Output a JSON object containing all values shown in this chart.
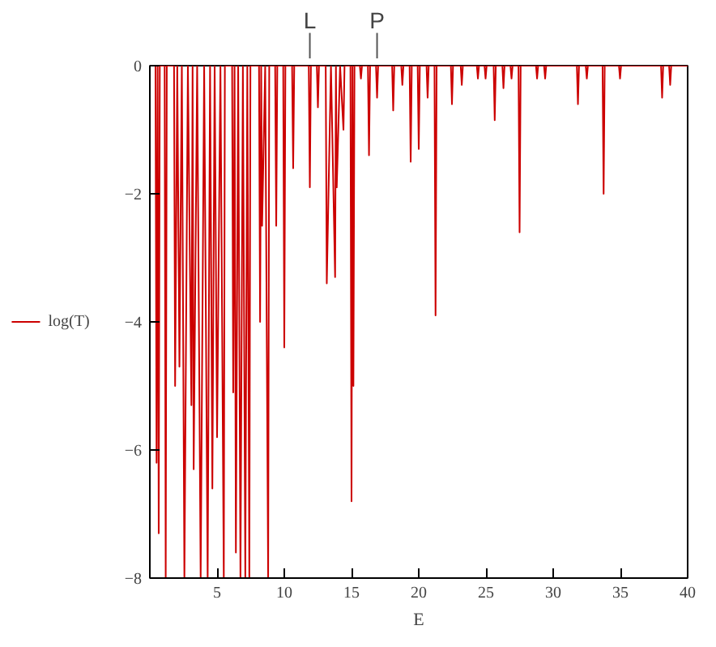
{
  "chart_data": {
    "type": "line",
    "xlabel": "E",
    "legend": "left",
    "grid": false,
    "marker": "none",
    "line_style": "solid",
    "xlim": [
      0,
      40
    ],
    "ylim": [
      -8,
      0
    ],
    "xticks": [
      5,
      10,
      15,
      20,
      25,
      30,
      35,
      40
    ],
    "yticks": [
      0,
      -2,
      -4,
      -6,
      -8
    ],
    "annotations": [
      {
        "text": "L",
        "x": 11.9,
        "y": 0
      },
      {
        "text": "P",
        "x": 16.9,
        "y": 0
      }
    ],
    "series": [
      {
        "name": "log(T)",
        "color": "#cc0000",
        "x": [
          0.1,
          0.42,
          0.5,
          0.58,
          0.66,
          0.74,
          1.1,
          1.18,
          1.26,
          1.8,
          1.88,
          2.04,
          2.2,
          2.38,
          2.57,
          2.83,
          3.09,
          3.18,
          3.26,
          3.52,
          3.78,
          4.04,
          4.3,
          4.48,
          4.65,
          4.82,
          5.0,
          5.25,
          5.5,
          5.58,
          6.12,
          6.2,
          6.3,
          6.4,
          6.57,
          6.74,
          6.92,
          7.1,
          7.25,
          7.4,
          7.48,
          8.12,
          8.2,
          8.28,
          8.35,
          8.58,
          8.8,
          8.88,
          9.32,
          9.4,
          9.48,
          9.92,
          10.0,
          10.08,
          10.58,
          10.66,
          10.74,
          11.82,
          11.9,
          11.98,
          12.42,
          12.5,
          12.58,
          13.08,
          13.16,
          13.47,
          13.78,
          13.84,
          13.9,
          14.15,
          14.4,
          14.48,
          14.92,
          15.0,
          15.07,
          15.14,
          15.22,
          15.62,
          15.7,
          15.78,
          16.22,
          16.3,
          16.38,
          16.82,
          16.9,
          16.98,
          18.02,
          18.1,
          18.18,
          18.7,
          18.78,
          18.86,
          19.32,
          19.4,
          19.48,
          19.92,
          20.0,
          20.08,
          20.58,
          20.66,
          20.74,
          21.17,
          21.25,
          21.33,
          22.39,
          22.47,
          22.55,
          23.12,
          23.2,
          23.28,
          24.32,
          24.4,
          24.48,
          24.89,
          24.97,
          25.05,
          25.57,
          25.65,
          25.73,
          26.22,
          26.3,
          26.38,
          26.82,
          26.9,
          26.98,
          27.42,
          27.5,
          27.58,
          28.72,
          28.8,
          28.88,
          29.32,
          29.4,
          29.48,
          31.76,
          31.84,
          31.92,
          32.42,
          32.5,
          32.58,
          33.67,
          33.75,
          33.83,
          34.89,
          34.97,
          35.05,
          38.02,
          38.1,
          38.18,
          38.62,
          38.7,
          38.78,
          40
        ],
        "values": [
          0,
          0,
          -6.2,
          0,
          -7.3,
          0,
          0,
          -8,
          0,
          0,
          -5.0,
          0,
          -4.7,
          0,
          -8,
          0,
          -5.3,
          0,
          -6.3,
          0,
          -8,
          0,
          -8,
          0,
          -6.6,
          0,
          -5.8,
          0,
          -8,
          0,
          0,
          -5.1,
          0,
          -7.6,
          0,
          -8,
          0,
          -8,
          0,
          -8,
          0,
          0,
          -4.0,
          0,
          -2.5,
          0,
          -8,
          0,
          0,
          -2.5,
          0,
          0,
          -4.4,
          0,
          0,
          -1.6,
          0,
          0,
          -1.9,
          0,
          0,
          -0.65,
          0,
          0,
          -3.4,
          0,
          -3.3,
          0,
          -1.9,
          0,
          -1.0,
          0,
          0,
          -6.8,
          0,
          -5.0,
          0,
          0,
          -0.2,
          0,
          0,
          -1.4,
          0,
          0,
          -0.5,
          0,
          0,
          -0.7,
          0,
          0,
          -0.3,
          0,
          0,
          -1.5,
          0,
          0,
          -1.3,
          0,
          0,
          -0.5,
          0,
          0,
          -3.9,
          0,
          0,
          -0.6,
          0,
          0,
          -0.3,
          0,
          0,
          -0.2,
          0,
          0,
          -0.2,
          0,
          0,
          -0.85,
          0,
          0,
          -0.35,
          0,
          0,
          -0.2,
          0,
          0,
          -2.6,
          0,
          0,
          -0.2,
          0,
          0,
          -0.2,
          0,
          0,
          -0.6,
          0,
          0,
          -0.2,
          0,
          0,
          -2.0,
          0,
          0,
          -0.2,
          0,
          0,
          -0.5,
          0,
          0,
          -0.3,
          0,
          0
        ]
      }
    ]
  }
}
